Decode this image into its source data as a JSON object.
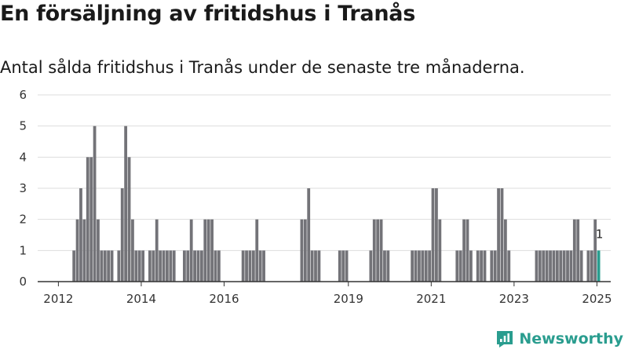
{
  "header": {
    "title": "En försäljning av fritidshus i Tranås",
    "subtitle": "Antal sålda fritidshus i Tranås under de senaste tre månaderna."
  },
  "brand": {
    "name": "Newsworthy",
    "icon": "newsworthy-logo-icon"
  },
  "colors": {
    "bar": "#737378",
    "highlight": "#2a9d8f",
    "grid": "#dddddd",
    "axis": "#333333",
    "text": "#333333"
  },
  "chart_data": {
    "type": "bar",
    "title": "En försäljning av fritidshus i Tranås",
    "subtitle": "Antal sålda fritidshus i Tranås under de senaste tre månaderna.",
    "xlabel": "",
    "ylabel": "",
    "ylim": [
      0,
      6
    ],
    "yticks": [
      0,
      1,
      2,
      3,
      4,
      5,
      6
    ],
    "xlim": [
      "2011-07",
      "2025-05"
    ],
    "xticks": [
      {
        "label": "2012",
        "month": "2012-01"
      },
      {
        "label": "2014",
        "month": "2014-01"
      },
      {
        "label": "2016",
        "month": "2016-01"
      },
      {
        "label": "2019",
        "month": "2019-01"
      },
      {
        "label": "2021",
        "month": "2021-01"
      },
      {
        "label": "2023",
        "month": "2023-01"
      },
      {
        "label": "2025",
        "month": "2025-01"
      }
    ],
    "grid": true,
    "legend": "none",
    "highlight": {
      "month": "2025-01",
      "value": 1,
      "label": "1"
    },
    "series": [
      {
        "data": [
          {
            "month": "2012-05",
            "value": 1
          },
          {
            "month": "2012-06",
            "value": 2
          },
          {
            "month": "2012-07",
            "value": 3
          },
          {
            "month": "2012-08",
            "value": 2
          },
          {
            "month": "2012-09",
            "value": 4
          },
          {
            "month": "2012-10",
            "value": 4
          },
          {
            "month": "2012-11",
            "value": 5
          },
          {
            "month": "2012-12",
            "value": 2
          },
          {
            "month": "2013-01",
            "value": 1
          },
          {
            "month": "2013-02",
            "value": 1
          },
          {
            "month": "2013-03",
            "value": 1
          },
          {
            "month": "2013-04",
            "value": 1
          },
          {
            "month": "2013-06",
            "value": 1
          },
          {
            "month": "2013-07",
            "value": 3
          },
          {
            "month": "2013-08",
            "value": 5
          },
          {
            "month": "2013-09",
            "value": 4
          },
          {
            "month": "2013-10",
            "value": 2
          },
          {
            "month": "2013-11",
            "value": 1
          },
          {
            "month": "2013-12",
            "value": 1
          },
          {
            "month": "2014-01",
            "value": 1
          },
          {
            "month": "2014-03",
            "value": 1
          },
          {
            "month": "2014-04",
            "value": 1
          },
          {
            "month": "2014-05",
            "value": 2
          },
          {
            "month": "2014-06",
            "value": 1
          },
          {
            "month": "2014-07",
            "value": 1
          },
          {
            "month": "2014-08",
            "value": 1
          },
          {
            "month": "2014-09",
            "value": 1
          },
          {
            "month": "2014-10",
            "value": 1
          },
          {
            "month": "2015-01",
            "value": 1
          },
          {
            "month": "2015-02",
            "value": 1
          },
          {
            "month": "2015-03",
            "value": 2
          },
          {
            "month": "2015-04",
            "value": 1
          },
          {
            "month": "2015-05",
            "value": 1
          },
          {
            "month": "2015-06",
            "value": 1
          },
          {
            "month": "2015-07",
            "value": 2
          },
          {
            "month": "2015-08",
            "value": 2
          },
          {
            "month": "2015-09",
            "value": 2
          },
          {
            "month": "2015-10",
            "value": 1
          },
          {
            "month": "2015-11",
            "value": 1
          },
          {
            "month": "2016-06",
            "value": 1
          },
          {
            "month": "2016-07",
            "value": 1
          },
          {
            "month": "2016-08",
            "value": 1
          },
          {
            "month": "2016-09",
            "value": 1
          },
          {
            "month": "2016-10",
            "value": 2
          },
          {
            "month": "2016-11",
            "value": 1
          },
          {
            "month": "2016-12",
            "value": 1
          },
          {
            "month": "2017-11",
            "value": 2
          },
          {
            "month": "2017-12",
            "value": 2
          },
          {
            "month": "2018-01",
            "value": 3
          },
          {
            "month": "2018-02",
            "value": 1
          },
          {
            "month": "2018-03",
            "value": 1
          },
          {
            "month": "2018-04",
            "value": 1
          },
          {
            "month": "2018-10",
            "value": 1
          },
          {
            "month": "2018-11",
            "value": 1
          },
          {
            "month": "2018-12",
            "value": 1
          },
          {
            "month": "2019-07",
            "value": 1
          },
          {
            "month": "2019-08",
            "value": 2
          },
          {
            "month": "2019-09",
            "value": 2
          },
          {
            "month": "2019-10",
            "value": 2
          },
          {
            "month": "2019-11",
            "value": 1
          },
          {
            "month": "2019-12",
            "value": 1
          },
          {
            "month": "2020-07",
            "value": 1
          },
          {
            "month": "2020-08",
            "value": 1
          },
          {
            "month": "2020-09",
            "value": 1
          },
          {
            "month": "2020-10",
            "value": 1
          },
          {
            "month": "2020-11",
            "value": 1
          },
          {
            "month": "2020-12",
            "value": 1
          },
          {
            "month": "2021-01",
            "value": 3
          },
          {
            "month": "2021-02",
            "value": 3
          },
          {
            "month": "2021-03",
            "value": 2
          },
          {
            "month": "2021-08",
            "value": 1
          },
          {
            "month": "2021-09",
            "value": 1
          },
          {
            "month": "2021-10",
            "value": 2
          },
          {
            "month": "2021-11",
            "value": 2
          },
          {
            "month": "2021-12",
            "value": 1
          },
          {
            "month": "2022-02",
            "value": 1
          },
          {
            "month": "2022-03",
            "value": 1
          },
          {
            "month": "2022-04",
            "value": 1
          },
          {
            "month": "2022-06",
            "value": 1
          },
          {
            "month": "2022-07",
            "value": 1
          },
          {
            "month": "2022-08",
            "value": 3
          },
          {
            "month": "2022-09",
            "value": 3
          },
          {
            "month": "2022-10",
            "value": 2
          },
          {
            "month": "2022-11",
            "value": 1
          },
          {
            "month": "2023-07",
            "value": 1
          },
          {
            "month": "2023-08",
            "value": 1
          },
          {
            "month": "2023-09",
            "value": 1
          },
          {
            "month": "2023-10",
            "value": 1
          },
          {
            "month": "2023-11",
            "value": 1
          },
          {
            "month": "2023-12",
            "value": 1
          },
          {
            "month": "2024-01",
            "value": 1
          },
          {
            "month": "2024-02",
            "value": 1
          },
          {
            "month": "2024-03",
            "value": 1
          },
          {
            "month": "2024-04",
            "value": 1
          },
          {
            "month": "2024-05",
            "value": 1
          },
          {
            "month": "2024-06",
            "value": 2
          },
          {
            "month": "2024-07",
            "value": 2
          },
          {
            "month": "2024-08",
            "value": 1
          },
          {
            "month": "2024-10",
            "value": 1
          },
          {
            "month": "2024-11",
            "value": 1
          },
          {
            "month": "2024-12",
            "value": 2
          },
          {
            "month": "2025-01",
            "value": 1
          }
        ]
      }
    ]
  }
}
